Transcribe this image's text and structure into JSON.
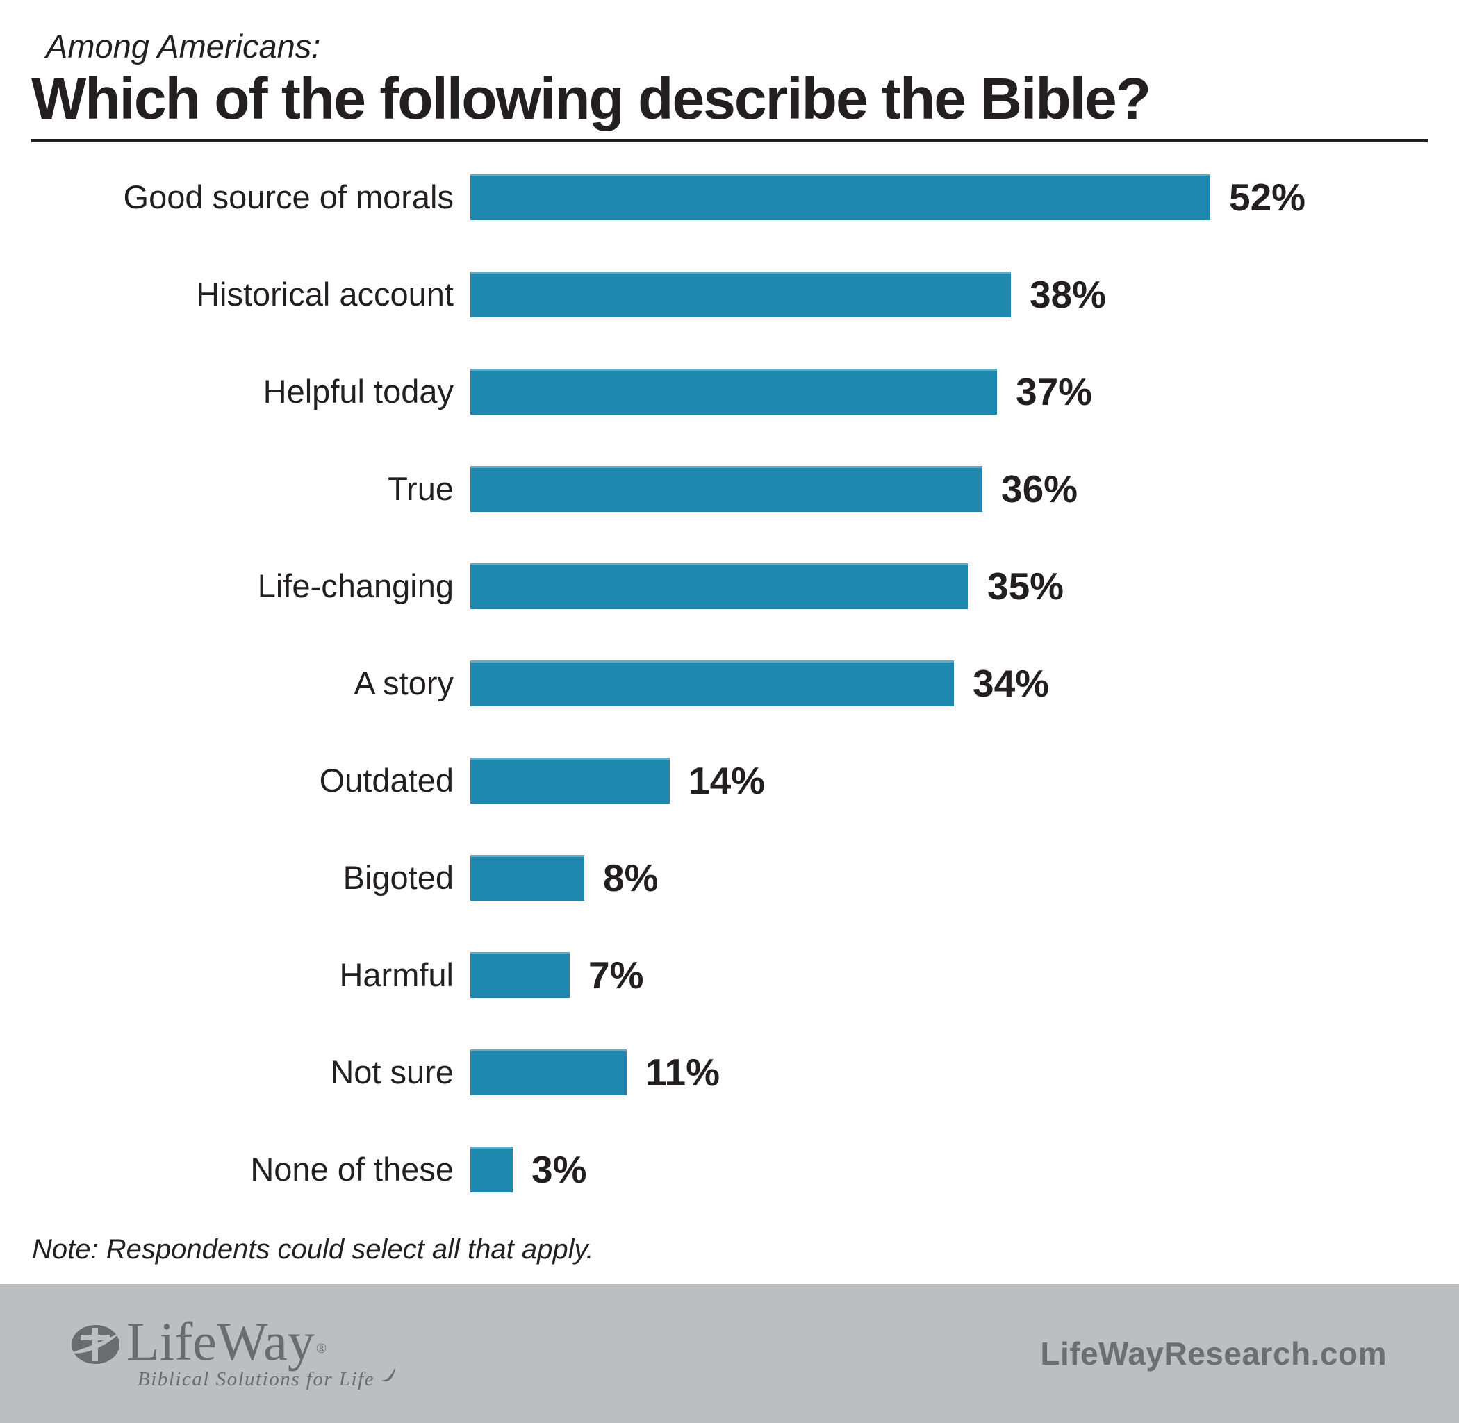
{
  "header": {
    "kicker": "Among Americans:",
    "title": "Which of the following describe the Bible?"
  },
  "chart_data": {
    "type": "bar",
    "orientation": "horizontal",
    "title": "Which of the following describe the Bible?",
    "subtitle": "Among Americans:",
    "categories": [
      "Good source of morals",
      "Historical account",
      "Helpful today",
      "True",
      "Life-changing",
      "A story",
      "Outdated",
      "Bigoted",
      "Harmful",
      "Not sure",
      "None of these"
    ],
    "values": [
      52,
      38,
      37,
      36,
      35,
      34,
      14,
      8,
      7,
      11,
      3
    ],
    "value_suffix": "%",
    "value_labels": "end-of-bar",
    "xlim": [
      0,
      52
    ],
    "grid": false,
    "legend": "none",
    "bar_color": "#1e87ae"
  },
  "note": "Note: Respondents could select all that apply.",
  "footer": {
    "logo": {
      "name": "LifeWay",
      "registered_mark": "®",
      "tagline": "Biblical Solutions for Life"
    },
    "website": "LifeWayResearch.com"
  },
  "colors": {
    "bar": "#1e87ae",
    "text": "#231f20",
    "footer_band": "#bcbec0",
    "footer_text": "#6d6e71"
  }
}
